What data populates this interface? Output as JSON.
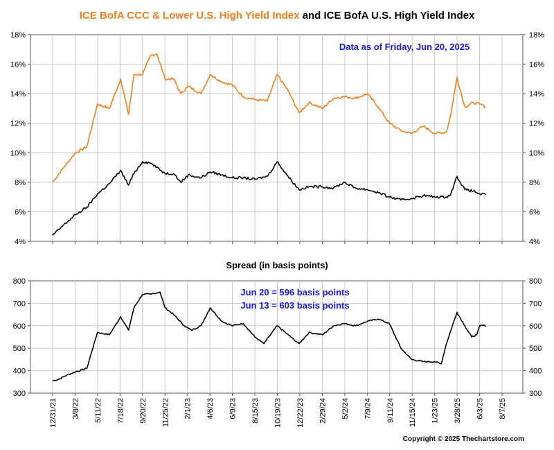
{
  "title": {
    "orange_part": "ICE BofA CCC & Lower U.S. High Yield Index",
    "black_part": " and ICE BofA U.S. High Yield Index"
  },
  "annotation_top": "Data as of Friday, Jun 20, 2025",
  "spread_title": "Spread (in basis points)",
  "annotation_spread": [
    "Jun 20 = 596 basis points",
    "Jun 13 = 603 basis points"
  ],
  "copyright": "Copyright © 2025 Thechartstore.com",
  "colors": {
    "ccc": "#f07f1f",
    "hy": "#000000",
    "annotation": "#1818e0",
    "grid": "#c8c8c8"
  },
  "chart_data": [
    {
      "type": "line",
      "ylim": [
        4,
        18
      ],
      "yticks": [
        "4%",
        "6%",
        "8%",
        "10%",
        "12%",
        "14%",
        "16%",
        "18%"
      ],
      "grid": true,
      "series": [
        {
          "name": "ICE BofA CCC & Lower U.S. High Yield Index",
          "color": "#f07f1f",
          "x": [
            "2021-12-31",
            "2022-02-01",
            "2022-03-08",
            "2022-04-10",
            "2022-05-11",
            "2022-06-15",
            "2022-07-18",
            "2022-08-10",
            "2022-08-26",
            "2022-09-20",
            "2022-10-14",
            "2022-11-01",
            "2022-11-25",
            "2022-12-20",
            "2023-01-10",
            "2023-02-01",
            "2023-03-10",
            "2023-04-06",
            "2023-05-10",
            "2023-06-09",
            "2023-07-12",
            "2023-08-15",
            "2023-09-20",
            "2023-10-19",
            "2023-11-20",
            "2023-12-22",
            "2024-01-20",
            "2024-02-29",
            "2024-04-01",
            "2024-05-02",
            "2024-06-05",
            "2024-07-09",
            "2024-08-10",
            "2024-09-11",
            "2024-10-15",
            "2024-11-15",
            "2024-12-20",
            "2025-01-23",
            "2025-02-25",
            "2025-03-10",
            "2025-03-28",
            "2025-04-20",
            "2025-05-15",
            "2025-06-03",
            "2025-06-20"
          ],
          "values": [
            8.0,
            9.0,
            10.0,
            10.4,
            13.3,
            13.0,
            15.0,
            12.6,
            15.3,
            15.3,
            16.6,
            16.7,
            15.0,
            15.0,
            14.0,
            14.5,
            14.0,
            15.3,
            14.8,
            14.6,
            13.8,
            13.6,
            13.5,
            15.3,
            14.2,
            12.7,
            13.4,
            13.0,
            13.7,
            13.8,
            13.7,
            14.0,
            13.1,
            12.0,
            11.5,
            11.3,
            11.8,
            11.3,
            11.4,
            12.6,
            15.1,
            13.1,
            13.4,
            13.3,
            13.1
          ]
        },
        {
          "name": "ICE BofA U.S. High Yield Index",
          "color": "#000000",
          "x": [
            "2021-12-31",
            "2022-02-01",
            "2022-03-08",
            "2022-04-10",
            "2022-05-11",
            "2022-06-15",
            "2022-07-18",
            "2022-08-10",
            "2022-08-26",
            "2022-09-20",
            "2022-10-14",
            "2022-11-01",
            "2022-11-25",
            "2022-12-20",
            "2023-01-10",
            "2023-02-01",
            "2023-03-10",
            "2023-04-06",
            "2023-05-10",
            "2023-06-09",
            "2023-07-12",
            "2023-08-15",
            "2023-09-20",
            "2023-10-19",
            "2023-11-20",
            "2023-12-22",
            "2024-01-20",
            "2024-02-29",
            "2024-04-01",
            "2024-05-02",
            "2024-06-05",
            "2024-07-09",
            "2024-08-10",
            "2024-09-11",
            "2024-10-15",
            "2024-11-15",
            "2024-12-20",
            "2025-01-23",
            "2025-02-25",
            "2025-03-10",
            "2025-03-28",
            "2025-04-20",
            "2025-05-15",
            "2025-06-03",
            "2025-06-20"
          ],
          "values": [
            4.4,
            5.1,
            5.8,
            6.3,
            7.2,
            7.9,
            8.8,
            7.8,
            8.6,
            9.4,
            9.3,
            9.0,
            8.6,
            8.6,
            8.0,
            8.5,
            8.3,
            8.7,
            8.5,
            8.3,
            8.3,
            8.2,
            8.4,
            9.4,
            8.4,
            7.5,
            7.7,
            7.7,
            7.6,
            8.0,
            7.6,
            7.5,
            7.3,
            7.0,
            6.8,
            6.9,
            7.1,
            7.0,
            7.0,
            7.2,
            8.4,
            7.5,
            7.4,
            7.2,
            7.15
          ]
        }
      ]
    },
    {
      "type": "line",
      "title": "Spread (in basis points)",
      "ylim": [
        300,
        800
      ],
      "yticks": [
        "300",
        "400",
        "500",
        "600",
        "700",
        "800"
      ],
      "grid": true,
      "x_tick_labels": [
        "12/31/21",
        "3/8/22",
        "5/11/22",
        "7/18/22",
        "9/20/22",
        "11/25/22",
        "2/1/23",
        "4/6/23",
        "6/9/23",
        "8/15/23",
        "10/19/23",
        "12/22/23",
        "2/29/24",
        "5/2/24",
        "7/9/24",
        "9/11/24",
        "11/15/24",
        "1/23/25",
        "3/28/25",
        "6/3/25",
        "8/7/25"
      ],
      "x_range": [
        "2021-12-31",
        "2025-08-07"
      ],
      "series": [
        {
          "name": "Spread",
          "color": "#000000",
          "x": [
            "2021-12-31",
            "2022-01-15",
            "2022-02-10",
            "2022-03-08",
            "2022-04-10",
            "2022-05-11",
            "2022-06-15",
            "2022-07-18",
            "2022-08-10",
            "2022-08-26",
            "2022-09-20",
            "2022-10-14",
            "2022-11-10",
            "2022-11-25",
            "2022-12-20",
            "2023-01-20",
            "2023-02-10",
            "2023-03-10",
            "2023-04-06",
            "2023-05-10",
            "2023-06-09",
            "2023-07-12",
            "2023-08-15",
            "2023-09-10",
            "2023-10-19",
            "2023-11-20",
            "2023-12-22",
            "2024-01-20",
            "2024-02-29",
            "2024-04-01",
            "2024-05-02",
            "2024-06-05",
            "2024-07-09",
            "2024-08-10",
            "2024-09-11",
            "2024-10-15",
            "2024-11-15",
            "2024-12-20",
            "2025-01-23",
            "2025-02-10",
            "2025-02-25",
            "2025-03-28",
            "2025-04-20",
            "2025-05-10",
            "2025-05-25",
            "2025-06-03",
            "2025-06-13",
            "2025-06-20"
          ],
          "values": [
            355,
            360,
            380,
            395,
            410,
            570,
            560,
            640,
            580,
            680,
            740,
            740,
            750,
            680,
            650,
            600,
            580,
            600,
            680,
            620,
            600,
            610,
            550,
            520,
            600,
            560,
            520,
            570,
            560,
            600,
            610,
            600,
            620,
            630,
            610,
            500,
            450,
            440,
            440,
            430,
            520,
            660,
            600,
            550,
            560,
            600,
            603,
            596
          ]
        }
      ]
    }
  ]
}
